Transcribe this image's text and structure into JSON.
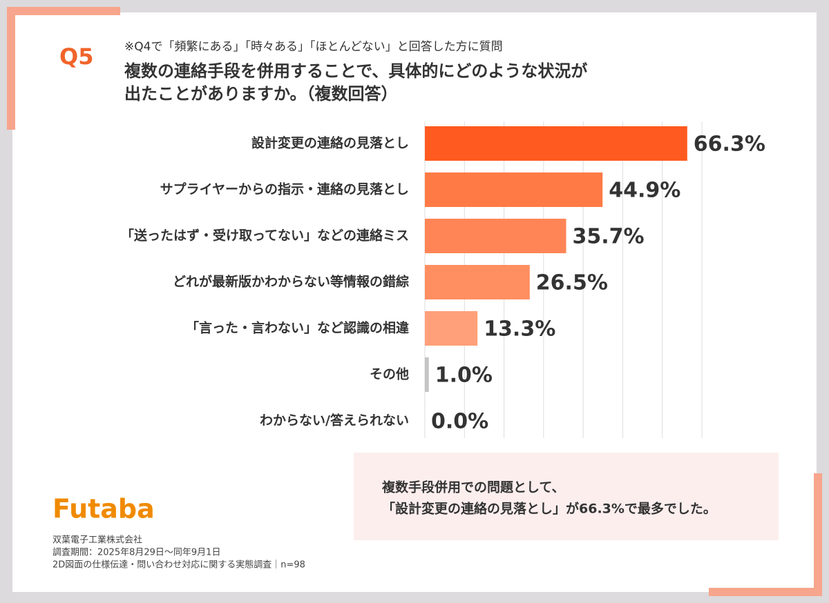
{
  "q_label": "Q5",
  "chart_data": {
    "type": "bar",
    "orientation": "horizontal",
    "subtitle": "※Q4で「頻繁にある」「時々ある」「ほとんどない」と回答した方に質問",
    "title": [
      "複数の連絡手段を併用することで、具体的にどのような状況が",
      "出たことがありますか。（複数回答）"
    ],
    "categories": [
      "設計変更の連絡の見落とし",
      "サプライヤーからの指示・連絡の見落とし",
      "「送ったはず・受け取ってない」などの連絡ミス",
      "どれが最新版かわからない等情報の錯綜",
      "「言った・言わない」など認識の相違",
      "その他",
      "わからない/答えられない"
    ],
    "values": [
      66.3,
      44.9,
      35.7,
      26.5,
      13.3,
      1.0,
      0.0
    ],
    "value_labels": [
      "66.3%",
      "44.9%",
      "35.7%",
      "26.5%",
      "13.3%",
      "1.0%",
      "0.0%"
    ],
    "colors": [
      "#ff5a1f",
      "#ff7a45",
      "#ff8556",
      "#ff8e60",
      "#ffa07a",
      "#c4c4c4",
      "#c4c4c4"
    ],
    "xlim": [
      0,
      70
    ],
    "xticks": [
      0,
      10,
      20,
      30,
      40,
      50,
      60,
      70
    ],
    "grid": true
  },
  "note": {
    "lines": [
      "複数手段併用での問題として、",
      "「設計変更の連絡の見落とし」が66.3%で最多でした。"
    ]
  },
  "logo": "Futaba",
  "footer": {
    "lines": [
      "双葉電子工業株式会社",
      "調査期間：2025年8月29日〜同年9月1日",
      "2D図面の仕様伝達・問い合わせ対応に関する実態調査｜n=98"
    ]
  }
}
